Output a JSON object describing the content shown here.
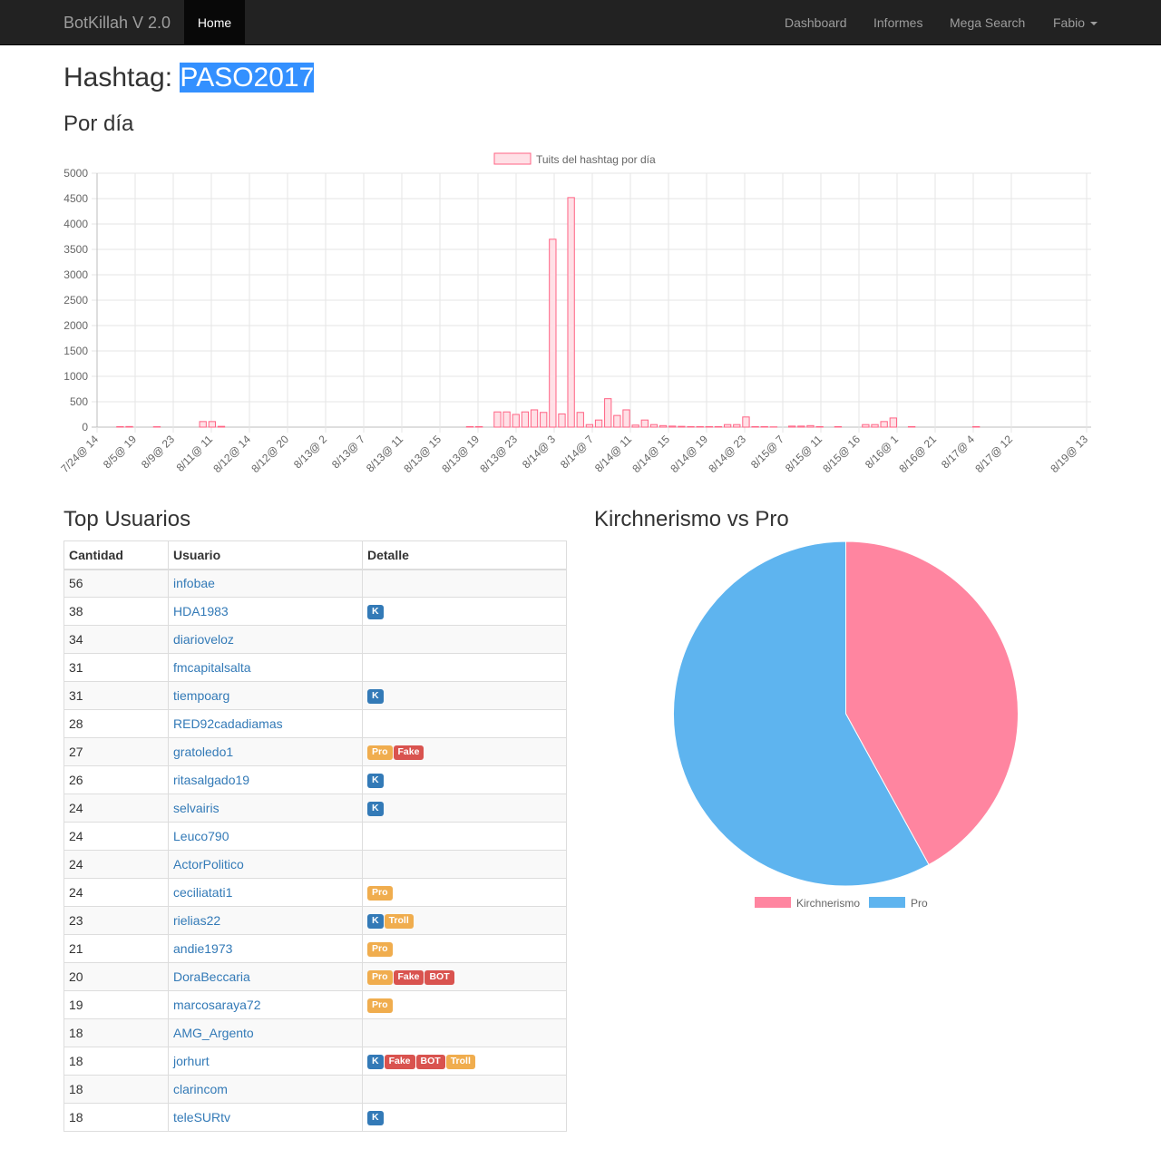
{
  "navbar": {
    "brand": "BotKillah V 2.0",
    "home": "Home",
    "items": [
      "Dashboard",
      "Informes",
      "Mega Search"
    ],
    "user": "Fabio"
  },
  "page": {
    "title_prefix": "Hashtag: ",
    "hashtag": "PASO2017",
    "per_day_heading": "Por día",
    "top_users_heading": "Top Usuarios",
    "pie_heading": "Kirchnerismo vs Pro"
  },
  "colors": {
    "bar_fill": "#ffe0e6",
    "bar_border": "#ff6384",
    "kirchnerismo": "#ff85a0",
    "pro": "#5eb4ef",
    "label_K": "#337ab7",
    "label_Pro": "#f0ad4e",
    "label_Fake": "#d9534f",
    "label_BOT": "#d9534f",
    "label_Troll": "#f0ad4e"
  },
  "table": {
    "headers": [
      "Cantidad",
      "Usuario",
      "Detalle"
    ],
    "rows": [
      {
        "count": "56",
        "user": "infobae",
        "labels": []
      },
      {
        "count": "38",
        "user": "HDA1983",
        "labels": [
          "K"
        ]
      },
      {
        "count": "34",
        "user": "diarioveloz",
        "labels": []
      },
      {
        "count": "31",
        "user": "fmcapitalsalta",
        "labels": []
      },
      {
        "count": "31",
        "user": "tiempoarg",
        "labels": [
          "K"
        ]
      },
      {
        "count": "28",
        "user": "RED92cadadiamas",
        "labels": []
      },
      {
        "count": "27",
        "user": "gratoledo1",
        "labels": [
          "Pro",
          "Fake"
        ]
      },
      {
        "count": "26",
        "user": "ritasalgado19",
        "labels": [
          "K"
        ]
      },
      {
        "count": "24",
        "user": "selvairis",
        "labels": [
          "K"
        ]
      },
      {
        "count": "24",
        "user": "Leuco790",
        "labels": []
      },
      {
        "count": "24",
        "user": "ActorPolitico",
        "labels": []
      },
      {
        "count": "24",
        "user": "ceciliatati1",
        "labels": [
          "Pro"
        ]
      },
      {
        "count": "23",
        "user": "rielias22",
        "labels": [
          "K",
          "Troll"
        ]
      },
      {
        "count": "21",
        "user": "andie1973",
        "labels": [
          "Pro"
        ]
      },
      {
        "count": "20",
        "user": "DoraBeccaria",
        "labels": [
          "Pro",
          "Fake",
          "BOT"
        ]
      },
      {
        "count": "19",
        "user": "marcosaraya72",
        "labels": [
          "Pro"
        ]
      },
      {
        "count": "18",
        "user": "AMG_Argento",
        "labels": []
      },
      {
        "count": "18",
        "user": "jorhurt",
        "labels": [
          "K",
          "Fake",
          "BOT",
          "Troll"
        ]
      },
      {
        "count": "18",
        "user": "clarincom",
        "labels": []
      },
      {
        "count": "18",
        "user": "teleSURtv",
        "labels": [
          "K"
        ]
      }
    ]
  },
  "chart_data": [
    {
      "type": "bar",
      "legend": [
        "Tuits del hashtag  por día"
      ],
      "legend_position": "top",
      "grid": true,
      "ylim": [
        0,
        5000
      ],
      "y_ticks": [
        0,
        500,
        1000,
        1500,
        2000,
        2500,
        3000,
        3500,
        4000,
        4500,
        5000
      ],
      "x_tick_labels": [
        "7/24@ 14",
        "8/5@ 19",
        "8/9@ 23",
        "8/11@ 11",
        "8/12@ 14",
        "8/12@ 20",
        "8/13@ 2",
        "8/13@ 7",
        "8/13@ 11",
        "8/13@ 15",
        "8/13@ 19",
        "8/13@ 23",
        "8/14@ 3",
        "8/14@ 7",
        "8/14@ 11",
        "8/14@ 15",
        "8/14@ 19",
        "8/14@ 23",
        "8/15@ 7",
        "8/15@ 11",
        "8/15@ 16",
        "8/16@ 1",
        "8/16@ 21",
        "8/17@ 4",
        "8/17@ 12",
        "8/19@ 13"
      ],
      "series": [
        {
          "name": "Tuits del hashtag  por día",
          "values": [
            0,
            0,
            10,
            12,
            0,
            0,
            8,
            0,
            0,
            0,
            0,
            110,
            110,
            15,
            0,
            0,
            0,
            0,
            0,
            0,
            0,
            0,
            0,
            0,
            0,
            0,
            0,
            0,
            0,
            0,
            0,
            0,
            0,
            0,
            0,
            0,
            0,
            0,
            0,
            0,
            10,
            10,
            0,
            300,
            300,
            250,
            300,
            340,
            290,
            3700,
            260,
            4520,
            290,
            50,
            140,
            560,
            230,
            340,
            40,
            140,
            50,
            30,
            20,
            15,
            10,
            10,
            10,
            10,
            50,
            50,
            200,
            10,
            10,
            5,
            0,
            20,
            20,
            30,
            10,
            0,
            10,
            0,
            0,
            50,
            50,
            110,
            180,
            0,
            10,
            0,
            0,
            0,
            0,
            0,
            0,
            10,
            0,
            0,
            0,
            0,
            0,
            0,
            0,
            0,
            0,
            0,
            0,
            0
          ]
        }
      ]
    },
    {
      "type": "pie",
      "legend": [
        "Kirchnerismo",
        "Pro"
      ],
      "legend_position": "bottom",
      "categories": [
        "Kirchnerismo",
        "Pro"
      ],
      "values": [
        42,
        58
      ]
    }
  ]
}
